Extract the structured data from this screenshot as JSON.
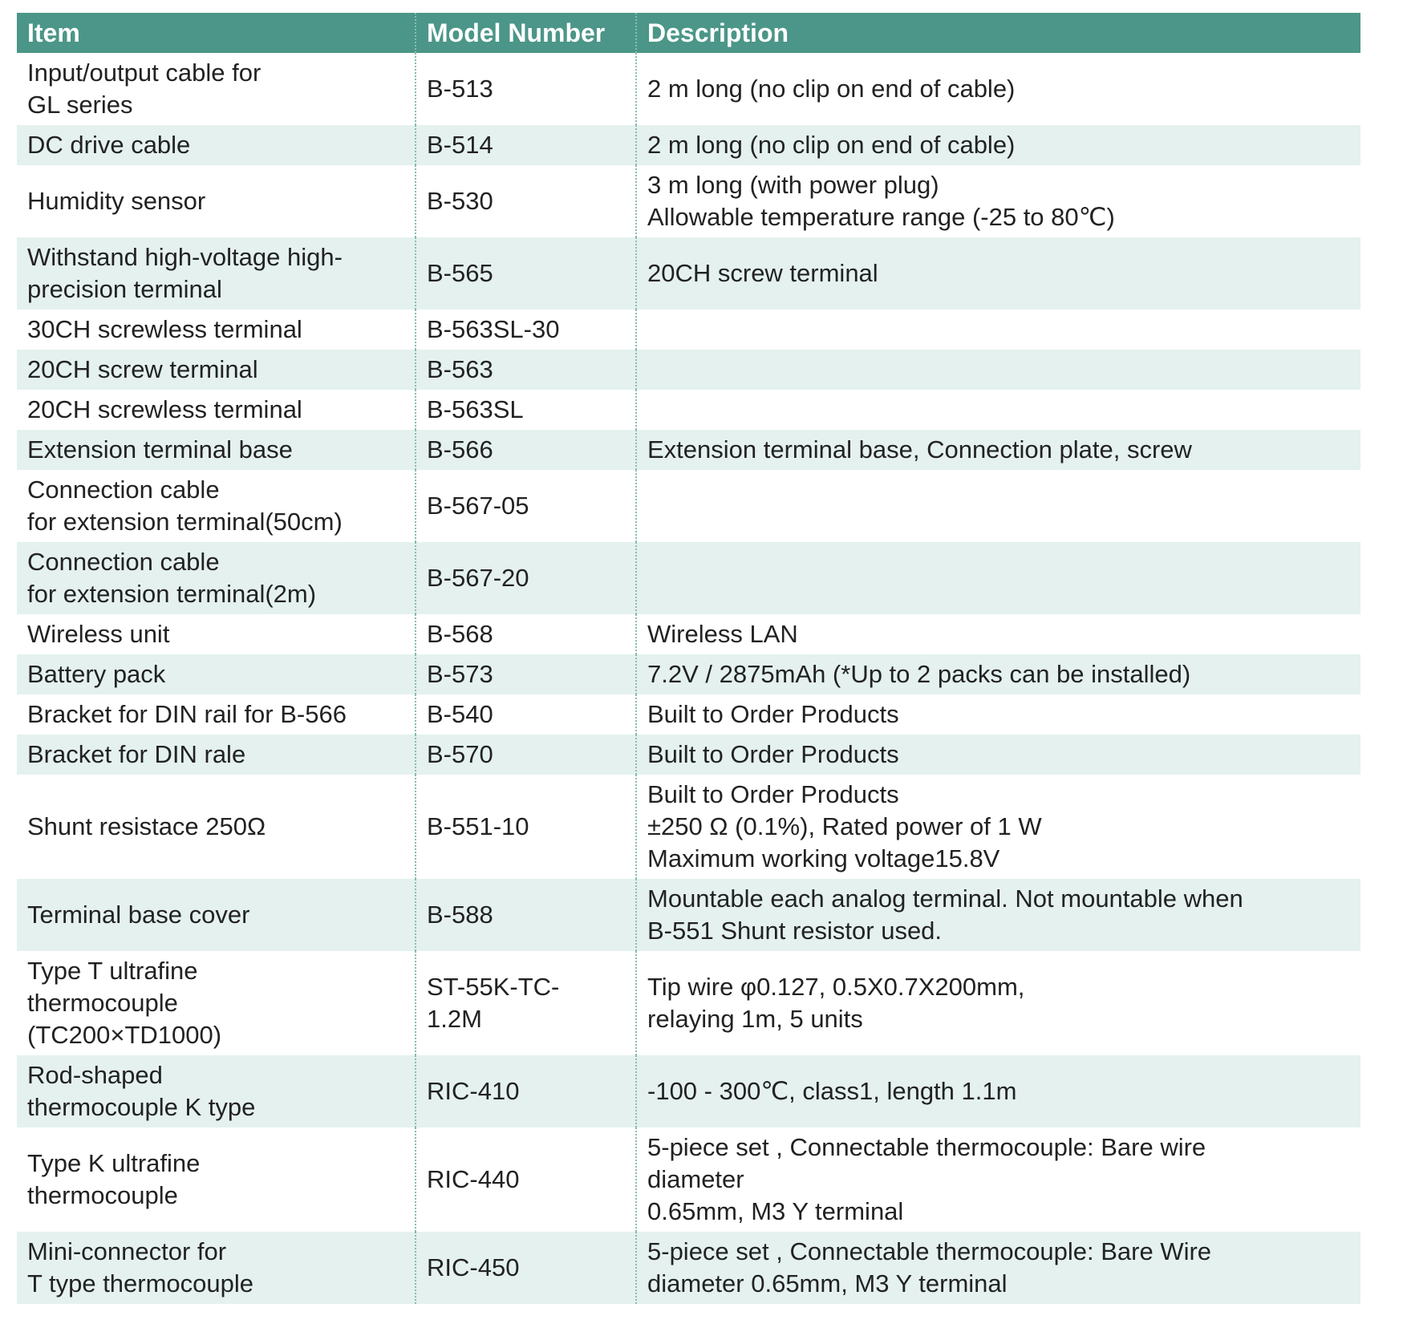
{
  "table": {
    "headers": [
      "Item",
      "Model Number",
      "Description"
    ],
    "rows": [
      {
        "item": "Input/output cable for\nGL series",
        "model": "B-513",
        "description": "2 m long (no clip on end of cable)"
      },
      {
        "item": "DC drive cable",
        "model": "B-514",
        "description": "2 m long (no clip on end of cable)"
      },
      {
        "item": "Humidity sensor",
        "model": "B-530",
        "description": "3 m long (with power plug)\nAllowable temperature range (-25 to 80℃)"
      },
      {
        "item": "Withstand high-voltage high-\nprecision terminal",
        "model": "B-565",
        "description": "20CH screw terminal"
      },
      {
        "item": "30CH screwless terminal",
        "model": "B-563SL-30",
        "description": ""
      },
      {
        "item": "20CH screw terminal",
        "model": "B-563",
        "description": ""
      },
      {
        "item": "20CH screwless terminal",
        "model": "B-563SL",
        "description": ""
      },
      {
        "item": "Extension terminal base",
        "model": "B-566",
        "description": "Extension terminal base, Connection plate, screw"
      },
      {
        "item": "Connection cable\nfor extension terminal(50cm)",
        "model": "B-567-05",
        "description": ""
      },
      {
        "item": "Connection cable\nfor extension terminal(2m)",
        "model": "B-567-20",
        "description": ""
      },
      {
        "item": "Wireless unit",
        "model": "B-568",
        "description": "Wireless LAN"
      },
      {
        "item": "Battery pack",
        "model": "B-573",
        "description": "7.2V / 2875mAh (*Up to 2 packs can be installed)"
      },
      {
        "item": "Bracket for DIN rail for B-566",
        "model": "B-540",
        "description": "Built to Order Products"
      },
      {
        "item": "Bracket for DIN rale",
        "model": "B-570",
        "description": "Built to Order Products"
      },
      {
        "item": "Shunt resistace 250Ω",
        "model": "B-551-10",
        "description": "Built to Order Products\n±250 Ω (0.1%), Rated power of 1 W\nMaximum working voltage15.8V"
      },
      {
        "item": "Terminal base cover",
        "model": "B-588",
        "description": "Mountable each analog terminal. Not mountable when\nB-551 Shunt resistor used."
      },
      {
        "item": "Type T ultrafine\nthermocouple\n(TC200×TD1000)",
        "model": "ST-55K-TC-\n1.2M",
        "description": "Tip wire φ0.127, 0.5X0.7X200mm,\nrelaying 1m, 5 units"
      },
      {
        "item": "Rod-shaped\nthermocouple K type",
        "model": "RIC-410",
        "description": "-100 - 300℃, class1, length 1.1m"
      },
      {
        "item": "Type K ultrafine\nthermocouple",
        "model": "RIC-440",
        "description": "5-piece set , Connectable thermocouple: Bare wire\ndiameter\n0.65mm, M3 Y terminal"
      },
      {
        "item": "Mini-connector for\nT type thermocouple",
        "model": "RIC-450",
        "description": "5-piece set , Connectable thermocouple: Bare Wire\ndiameter 0.65mm, M3 Y terminal"
      }
    ]
  },
  "colors": {
    "header_bg": "#4b9688",
    "header_text": "#ffffff",
    "stripe_bg": "#e4f1ef",
    "divider": "#86bdb3"
  }
}
